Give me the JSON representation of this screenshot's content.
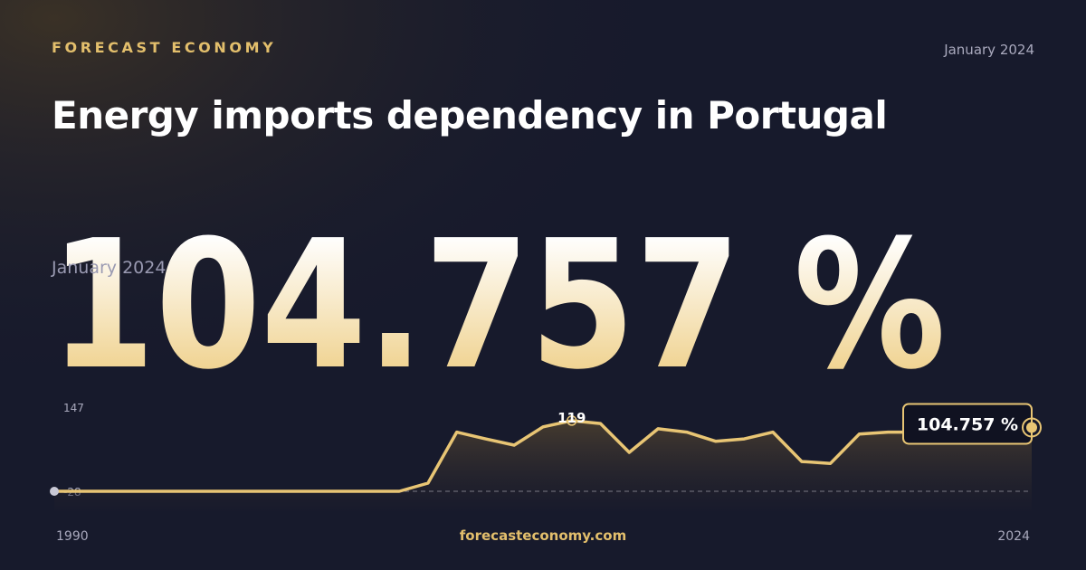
{
  "brand": "FORECAST ECONOMY",
  "date": "January 2024",
  "headline": "104.757 %",
  "footer": "forecasteconomy.com",
  "chart_data": {
    "type": "line",
    "title": "Energy imports dependency in Portugal",
    "x": [
      1990,
      1991,
      1992,
      1993,
      1994,
      1995,
      1996,
      1997,
      1998,
      1999,
      2000,
      2001,
      2002,
      2003,
      2004,
      2005,
      2006,
      2007,
      2008,
      2009,
      2010,
      2011,
      2012,
      2013,
      2014,
      2015,
      2016,
      2017,
      2018,
      2019,
      2020,
      2021,
      2022,
      2023,
      2024
    ],
    "values": [
      -28,
      -28,
      -28,
      -28,
      -28,
      -28,
      -28,
      -28,
      -28,
      -28,
      -28,
      -28,
      -28,
      -11,
      95,
      81,
      68,
      106,
      119,
      113,
      53,
      102,
      95,
      76,
      81,
      95,
      34,
      30,
      91,
      95,
      95,
      98,
      95,
      98,
      104.757
    ],
    "value_labels": [
      null,
      null,
      null,
      null,
      null,
      null,
      null,
      null,
      null,
      null,
      null,
      null,
      null,
      null,
      null,
      null,
      null,
      null,
      "119",
      null,
      null,
      null,
      null,
      null,
      null,
      null,
      null,
      null,
      null,
      null,
      null,
      null,
      null,
      null,
      "104.757 %"
    ],
    "color": "#e8c574",
    "xlim": [
      1990,
      2024
    ],
    "xticks": [
      1990,
      2024
    ],
    "ylim": [
      -28,
      147
    ],
    "yticks": [
      -28,
      147
    ]
  }
}
